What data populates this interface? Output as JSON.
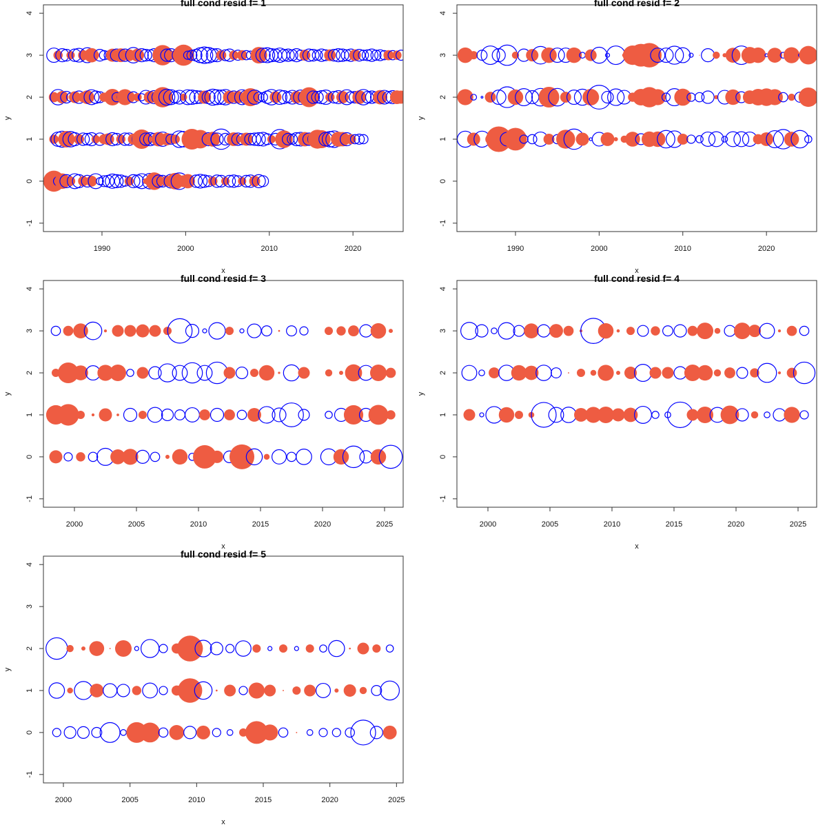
{
  "figure": {
    "layout": "3 rows x 2 columns, 5 panels",
    "fill_color_positive": "#EE5C42",
    "outline_color_negative": "#0000FF"
  },
  "chart_data": [
    {
      "type": "scatter",
      "subtype": "bubble",
      "title": "full cond resid f= 1",
      "xlabel": "x",
      "ylabel": "y",
      "xlim": [
        1983,
        2026
      ],
      "ylim": [
        -1,
        4
      ],
      "xticks": [
        1990,
        2000,
        2010,
        2020
      ],
      "yticks": [
        -1,
        0,
        1,
        2,
        3,
        4
      ],
      "legend": "none",
      "encoding": "bubble area ~ |residual|; filled red = positive, blue open = negative",
      "rows": [
        {
          "y": 3,
          "x_start": 1984.25,
          "step": 0.5,
          "resid": [
            -1.2,
            0.5,
            -1.0,
            -0.8,
            0.4,
            -0.9,
            -1.1,
            0.6,
            -1.3,
            1.2,
            0.3,
            -0.8,
            -0.5,
            -0.4,
            1.0,
            -0.9,
            1.1,
            -0.9,
            0.8,
            -1.4,
            1.0,
            -1.0,
            -0.8,
            -0.7,
            -1.0,
            -0.6,
            2.4,
            -0.9,
            -1.0,
            0.6,
            -1.2,
            2.6,
            -0.4,
            -0.6,
            -0.8,
            -1.3,
            -1.6,
            -1.4,
            -1.0,
            -1.0,
            0.6,
            -0.7,
            -0.9,
            0.5,
            -0.6,
            0.6,
            -0.5,
            -0.4,
            0.3,
            1.6,
            -1.2,
            -1.3,
            -1.0,
            -0.9,
            -1.2,
            -0.8,
            -0.9,
            -0.7,
            -1.0,
            -0.6,
            0.7,
            -0.9,
            -0.8,
            -0.6,
            -0.9,
            -0.7,
            0.8,
            -0.8,
            -1.0,
            -0.9,
            -0.7,
            -0.9,
            0.8,
            -0.8,
            -0.6,
            -0.7,
            -0.9,
            -0.6,
            -0.7,
            -0.5,
            0.6,
            -0.5,
            0.5,
            -0.6
          ]
        },
        {
          "y": 2,
          "x_start": 1984.25,
          "step": 0.5,
          "resid": [
            0.6,
            -1.4,
            0.9,
            -0.8,
            -0.4,
            0.8,
            -0.9,
            0.6,
            1.1,
            -1.3,
            -0.9,
            -0.7,
            0.5,
            0.3,
            1.6,
            -0.5,
            -0.3,
            1.5,
            0.8,
            -0.7,
            0.4,
            -0.3,
            -1.1,
            0.9,
            -1.0,
            -1.0,
            2.4,
            -1.5,
            -1.3,
            -0.8,
            -1.1,
            0.3,
            -1.3,
            -1.2,
            -1.0,
            -0.9,
            1.0,
            -1.0,
            -1.5,
            -1.3,
            -1.2,
            -1.4,
            1.0,
            -0.9,
            0.9,
            -1.3,
            -1.1,
            1.9,
            -1.2,
            -0.6,
            -0.5,
            -0.9,
            -1.4,
            0.8,
            -1.2,
            -1.0,
            -0.7,
            -1.1,
            0.9,
            -1.2,
            -1.0,
            2.3,
            -0.9,
            -0.8,
            -1.0,
            -1.2,
            0.5,
            -0.8,
            -1.0,
            0.9,
            -1.3,
            -0.7,
            -0.8,
            1.1,
            -1.4,
            -0.8,
            -0.9,
            -0.7,
            1.2,
            -1.1,
            -0.8,
            -1.0,
            1.1,
            1.0
          ]
        },
        {
          "y": 1,
          "x_start": 1984.25,
          "step": 0.5,
          "resid": [
            0.5,
            -1.2,
            -1.5,
            1.6,
            -1.4,
            -1.0,
            0.6,
            -0.9,
            -0.8,
            -1.0,
            0.4,
            -0.9,
            0.6,
            0.8,
            -1.0,
            -0.8,
            0.5,
            -0.9,
            -0.9,
            0.7,
            -0.7,
            2.2,
            -0.9,
            -1.0,
            -0.8,
            1.2,
            -1.2,
            0.9,
            -0.6,
            0.5,
            -1.6,
            -1.4,
            0.8,
            2.5,
            1.4,
            2.0,
            0.9,
            -1.0,
            1.3,
            -0.9,
            -2.4,
            -0.8,
            -0.6,
            1.1,
            -0.9,
            -0.7,
            1.0,
            -0.8,
            -0.9,
            -1.0,
            -1.1,
            -0.7,
            0.4,
            -0.8,
            -2.2,
            1.8,
            -0.8,
            -0.6,
            -1.0,
            -1.1,
            1.2,
            -0.9,
            -0.7,
            2.1,
            1.9,
            -1.1,
            -1.4,
            -1.6,
            1.3,
            1.2,
            -1.0,
            0.6,
            -0.5,
            -0.6,
            -0.5
          ]
        },
        {
          "y": 0,
          "x_start": 1984.25,
          "step": 0.5,
          "resid": [
            2.6,
            -0.5,
            1.4,
            -1.0,
            0.5,
            -1.3,
            -1.0,
            0.6,
            -0.8,
            0.7,
            -1.3,
            -0.3,
            -0.7,
            -0.8,
            -1.2,
            -1.0,
            -0.9,
            -0.6,
            0.5,
            -1.0,
            -0.9,
            -1.3,
            0.2,
            -1.4,
            1.8,
            -0.9,
            -0.8,
            0.7,
            -1.1,
            1.6,
            -1.6,
            0.8,
            1.2,
            0.0,
            -0.9,
            -1.1,
            -0.9,
            -0.7,
            0.5,
            -0.9,
            -0.8,
            0.4,
            -0.8,
            -0.9,
            -0.7,
            0.4,
            -0.8,
            -0.9,
            0.7,
            -1.0,
            -0.7
          ]
        }
      ]
    },
    {
      "type": "scatter",
      "subtype": "bubble",
      "title": "full cond resid f= 2",
      "xlabel": "x",
      "ylabel": "y",
      "xlim": [
        1983,
        2026
      ],
      "ylim": [
        -1,
        4
      ],
      "xticks": [
        1990,
        2000,
        2010,
        2020
      ],
      "yticks": [
        -1,
        0,
        1,
        2,
        3,
        4
      ],
      "legend": "none",
      "x": [
        1984,
        1985,
        1986,
        1987,
        1988,
        1989,
        1990,
        1991,
        1992,
        1993,
        1994,
        1995,
        1996,
        1997,
        1998,
        1999,
        2000,
        2001,
        2002,
        2003,
        2004,
        2005,
        2006,
        2007,
        2008,
        2009,
        2010,
        2011,
        2012,
        2013,
        2014,
        2015,
        2016,
        2017,
        2018,
        2019,
        2020,
        2021,
        2022,
        2023,
        2024,
        2025
      ],
      "series": [
        {
          "name": "y=3",
          "y": 3,
          "resid": [
            1.4,
            0.4,
            -0.6,
            -2.0,
            -1.0,
            -2.4,
            0.3,
            -0.9,
            0.9,
            -1.8,
            1.4,
            -1.2,
            -1.2,
            1.4,
            -0.2,
            0.8,
            -1.5,
            -0.1,
            -2.0,
            0.1,
            2.2,
            3.0,
            3.5,
            -1.2,
            -1.2,
            -1.9,
            -1.3,
            -0.1,
            0.0,
            -1.0,
            0.3,
            0.1,
            1.3,
            -2.0,
            1.6,
            1.4,
            -0.05,
            1.3,
            -0.2,
            1.5,
            -0.05,
            2.0
          ]
        },
        {
          "name": "y=2",
          "y": 2,
          "resid": [
            1.5,
            -0.2,
            -0.02,
            0.7,
            -1.2,
            -2.5,
            1.4,
            -1.7,
            -1.0,
            -1.8,
            2.5,
            -1.8,
            0.7,
            -1.2,
            -1.5,
            1.6,
            -3.3,
            -0.8,
            -1.6,
            -1.1,
            0.5,
            1.6,
            2.4,
            1.5,
            -0.4,
            -1.7,
            1.7,
            -0.4,
            -0.5,
            -0.9,
            0.1,
            -1.1,
            1.4,
            -0.7,
            1.1,
            1.6,
            1.8,
            1.5,
            -0.5,
            0.3,
            -0.6,
            2.2
          ]
        },
        {
          "name": "y=1",
          "y": 1,
          "resid": [
            -1.5,
            1.0,
            -1.5,
            0.6,
            3.8,
            -1.1,
            3.0,
            -0.4,
            -0.5,
            -1.2,
            0.7,
            -0.5,
            2.1,
            -2.4,
            1.0,
            -0.05,
            -1.1,
            1.1,
            0.1,
            0.3,
            1.3,
            -0.7,
            1.4,
            1.4,
            -1.8,
            -1.6,
            0.7,
            -0.4,
            -0.3,
            -1.2,
            -1.3,
            -0.2,
            -1.3,
            -1.3,
            -1.2,
            0.6,
            1.1,
            -1.7,
            -2.2,
            1.3,
            -1.8,
            -0.3
          ]
        }
      ]
    },
    {
      "type": "scatter",
      "subtype": "bubble",
      "title": "full cond resid f= 3",
      "xlabel": "x",
      "ylabel": "y",
      "xlim": [
        1997.5,
        2026.5
      ],
      "ylim": [
        -1,
        4
      ],
      "xticks": [
        2000,
        2005,
        2010,
        2015,
        2020,
        2025
      ],
      "yticks": [
        -1,
        0,
        1,
        2,
        3,
        4
      ],
      "legend": "none",
      "x": [
        1998.5,
        1999.5,
        2000.5,
        2001.5,
        2002.5,
        2003.5,
        2004.5,
        2005.5,
        2006.5,
        2007.5,
        2008.5,
        2009.5,
        2010.5,
        2011.5,
        2012.5,
        2013.5,
        2014.5,
        2015.5,
        2016.5,
        2017.5,
        2018.5,
        2020.5,
        2021.5,
        2022.5,
        2023.5,
        2024.5,
        2025.5
      ],
      "series": [
        {
          "name": "y=3",
          "y": 3,
          "resid": [
            -0.5,
            0.6,
            1.3,
            -1.8,
            0.05,
            0.8,
            0.8,
            1.0,
            0.8,
            0.4,
            -3.5,
            -1.0,
            -0.1,
            -1.6,
            0.4,
            -0.1,
            -1.1,
            -0.6,
            0.02,
            -0.6,
            -0.4,
            0.4,
            0.5,
            0.7,
            -0.9,
            1.4,
            0.1
          ]
        },
        {
          "name": "y=2",
          "y": 2,
          "resid": [
            0.4,
            2.5,
            1.3,
            -1.2,
            1.5,
            1.6,
            -0.3,
            0.8,
            -0.9,
            -1.9,
            -1.3,
            -2.4,
            -1.3,
            -2.7,
            0.8,
            -0.8,
            0.4,
            1.4,
            0.03,
            -1.5,
            0.8,
            0.3,
            0.1,
            1.7,
            -1.3,
            1.6,
            0.6
          ]
        },
        {
          "name": "y=1",
          "y": 1,
          "resid": [
            2.2,
            2.7,
            0.4,
            0.05,
            1.0,
            0.04,
            -1.0,
            0.4,
            -1.3,
            -0.8,
            -0.6,
            -1.2,
            0.7,
            -1.0,
            0.7,
            -0.5,
            1.1,
            -1.6,
            -1.1,
            -3.3,
            -0.7,
            -0.3,
            -1.0,
            2.2,
            -1.0,
            2.3,
            0.5
          ]
        },
        {
          "name": "y=0",
          "y": 0,
          "resid": [
            1.0,
            -0.4,
            0.5,
            -0.5,
            -1.7,
            1.3,
            1.5,
            -1.0,
            -0.5,
            0.1,
            1.4,
            -0.3,
            3.2,
            0.9,
            -0.8,
            3.6,
            -1.5,
            0.2,
            -1.2,
            -0.5,
            -1.4,
            -1.5,
            1.4,
            -2.7,
            -0.9,
            1.4,
            -3.1
          ]
        }
      ]
    },
    {
      "type": "scatter",
      "subtype": "bubble",
      "title": "full cond resid f= 4",
      "xlabel": "x",
      "ylabel": "y",
      "xlim": [
        1997.5,
        2026.5
      ],
      "ylim": [
        -1,
        4
      ],
      "xticks": [
        2000,
        2005,
        2010,
        2015,
        2020,
        2025
      ],
      "yticks": [
        -1,
        0,
        1,
        2,
        3,
        4
      ],
      "legend": "none",
      "x": [
        1998.5,
        1999.5,
        2000.5,
        2001.5,
        2002.5,
        2003.5,
        2004.5,
        2005.5,
        2006.5,
        2007.5,
        2008.5,
        2009.5,
        2010.5,
        2011.5,
        2012.5,
        2013.5,
        2014.5,
        2015.5,
        2016.5,
        2017.5,
        2018.5,
        2019.5,
        2020.5,
        2021.5,
        2022.5,
        2023.5,
        2024.5,
        2025.5
      ],
      "series": [
        {
          "name": "y=3",
          "y": 3,
          "resid": [
            -1.7,
            -0.9,
            -0.2,
            -1.6,
            -0.7,
            1.3,
            -0.9,
            1.1,
            0.6,
            0.05,
            -3.7,
            1.4,
            0.06,
            0.4,
            -0.7,
            0.5,
            -0.6,
            -0.9,
            0.6,
            1.6,
            0.2,
            -0.7,
            1.6,
            0.9,
            -1.3,
            0.05,
            0.6,
            -0.5
          ]
        },
        {
          "name": "y=2",
          "y": 2,
          "resid": [
            -1.3,
            -0.2,
            0.7,
            -1.4,
            1.4,
            1.2,
            -1.4,
            -0.6,
            0.01,
            0.4,
            0.2,
            1.5,
            0.1,
            0.9,
            -1.7,
            0.8,
            0.8,
            -0.9,
            1.6,
            1.4,
            0.3,
            0.7,
            -0.7,
            0.5,
            -2.1,
            0.05,
            0.6,
            -2.7
          ]
        },
        {
          "name": "y=1",
          "y": 1,
          "resid": [
            0.8,
            -0.1,
            -1.6,
            1.4,
            0.4,
            0.2,
            -3.6,
            -1.3,
            -1.4,
            1.1,
            1.5,
            1.6,
            1.0,
            1.2,
            -1.7,
            -0.3,
            -0.2,
            -3.8,
            0.8,
            1.6,
            -1.3,
            2.0,
            -0.9,
            0.3,
            -0.2,
            -0.9,
            1.5,
            -0.4
          ]
        }
      ]
    },
    {
      "type": "scatter",
      "subtype": "bubble",
      "title": "full cond resid f= 5",
      "xlabel": "x",
      "ylabel": "y",
      "xlim": [
        1998.5,
        2025.5
      ],
      "ylim": [
        -1,
        4
      ],
      "xticks": [
        2000,
        2005,
        2010,
        2015,
        2020,
        2025
      ],
      "yticks": [
        -1,
        0,
        1,
        2,
        3,
        4
      ],
      "legend": "none",
      "x": [
        1999.5,
        2000.5,
        2001.5,
        2002.5,
        2003.5,
        2004.5,
        2005.5,
        2006.5,
        2007.5,
        2008.5,
        2009.5,
        2010.5,
        2011.5,
        2012.5,
        2013.5,
        2014.5,
        2015.5,
        2016.5,
        2017.5,
        2018.5,
        2019.5,
        2020.5,
        2021.5,
        2022.5,
        2023.5,
        2024.5
      ],
      "series": [
        {
          "name": "y=2",
          "y": 2,
          "resid": [
            -2.7,
            0.3,
            0.1,
            1.3,
            0.01,
            1.6,
            -0.1,
            -1.9,
            -0.4,
            0.6,
            3.9,
            -1.6,
            -0.9,
            -0.4,
            -1.4,
            0.4,
            -0.1,
            0.4,
            -0.1,
            0.4,
            -0.3,
            -1.5,
            0.02,
            0.8,
            0.4,
            -0.3
          ]
        },
        {
          "name": "y=1",
          "y": 1,
          "resid": [
            -1.4,
            0.2,
            -1.9,
            1.1,
            -1.1,
            -0.9,
            0.5,
            -1.3,
            -0.4,
            0.6,
            3.5,
            -1.8,
            0.02,
            0.8,
            -0.4,
            1.5,
            0.8,
            0.01,
            0.4,
            0.8,
            -1.2,
            0.1,
            0.9,
            0.3,
            -0.6,
            -2.1
          ]
        },
        {
          "name": "y=0",
          "y": 0,
          "resid": [
            -0.4,
            -0.8,
            -0.8,
            -0.6,
            -2.3,
            -0.2,
            2.5,
            2.3,
            -0.5,
            1.3,
            -0.9,
            1.1,
            -0.4,
            -0.2,
            0.4,
            3.0,
            1.5,
            -0.5,
            0.01,
            -0.2,
            -0.4,
            -0.4,
            -0.5,
            -3.6,
            -0.9,
            1.1
          ]
        }
      ]
    }
  ]
}
